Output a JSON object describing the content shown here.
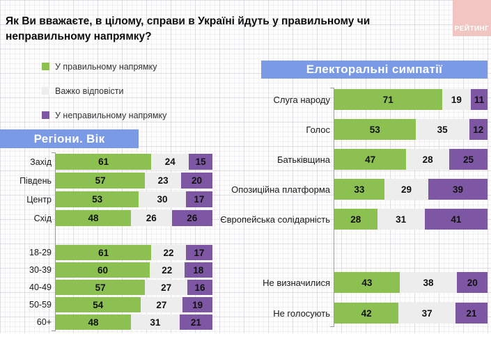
{
  "title": "Як Ви вважаєте, в цілому, справи в Україні йдуть у правильному чи неправильному напрямку?",
  "logo": {
    "text": "РЕЙТИНГ"
  },
  "colors": {
    "positive": "#8cc051",
    "neutral": "#ededed",
    "negative": "#7d57a3",
    "banner": "#7a9ae6",
    "logo_bg": "#f0c5c2"
  },
  "legend": [
    {
      "label": "У правильному напрямку",
      "color_key": "positive"
    },
    {
      "label": "Важко відповісти",
      "color_key": "neutral"
    },
    {
      "label": "У неправильному напрямку",
      "color_key": "negative"
    }
  ],
  "sections": {
    "left_banner": "Регіони. Вік",
    "right_banner": "Електоральні симпатії"
  },
  "chart_data": {
    "type": "bar",
    "orientation": "horizontal",
    "stacked": true,
    "unit": "percent",
    "series_names": [
      "У правильному напрямку",
      "Важко відповісти",
      "У неправильному напрямку"
    ],
    "groups": [
      {
        "id": "regions",
        "section": "Регіони. Вік",
        "rows": [
          {
            "label": "Захід",
            "values": [
              61,
              24,
              15
            ]
          },
          {
            "label": "Південь",
            "values": [
              57,
              23,
              20
            ]
          },
          {
            "label": "Центр",
            "values": [
              53,
              30,
              17
            ]
          },
          {
            "label": "Схід",
            "values": [
              48,
              26,
              26
            ]
          }
        ]
      },
      {
        "id": "age",
        "section": "Регіони. Вік",
        "rows": [
          {
            "label": "18-29",
            "values": [
              61,
              22,
              17
            ]
          },
          {
            "label": "30-39",
            "values": [
              60,
              22,
              18
            ]
          },
          {
            "label": "40-49",
            "values": [
              57,
              27,
              16
            ]
          },
          {
            "label": "50-59",
            "values": [
              54,
              27,
              19
            ]
          },
          {
            "label": "60+",
            "values": [
              48,
              31,
              21
            ]
          }
        ]
      },
      {
        "id": "electoral-main",
        "section": "Електоральні симпатії",
        "rows": [
          {
            "label": "Слуга народу",
            "values": [
              71,
              19,
              11
            ]
          },
          {
            "label": "Голос",
            "values": [
              53,
              35,
              12
            ]
          },
          {
            "label": "Батьківщина",
            "values": [
              47,
              28,
              25
            ]
          },
          {
            "label": "Опозиційна платформа",
            "values": [
              33,
              29,
              39
            ]
          },
          {
            "label": "Європейська солідарність",
            "values": [
              28,
              31,
              41
            ]
          }
        ]
      },
      {
        "id": "electoral-other",
        "section": "Електоральні симпатії",
        "rows": [
          {
            "label": "Не визначилися",
            "values": [
              43,
              38,
              20
            ]
          },
          {
            "label": "Не голосують",
            "values": [
              42,
              37,
              21
            ]
          }
        ]
      }
    ]
  }
}
